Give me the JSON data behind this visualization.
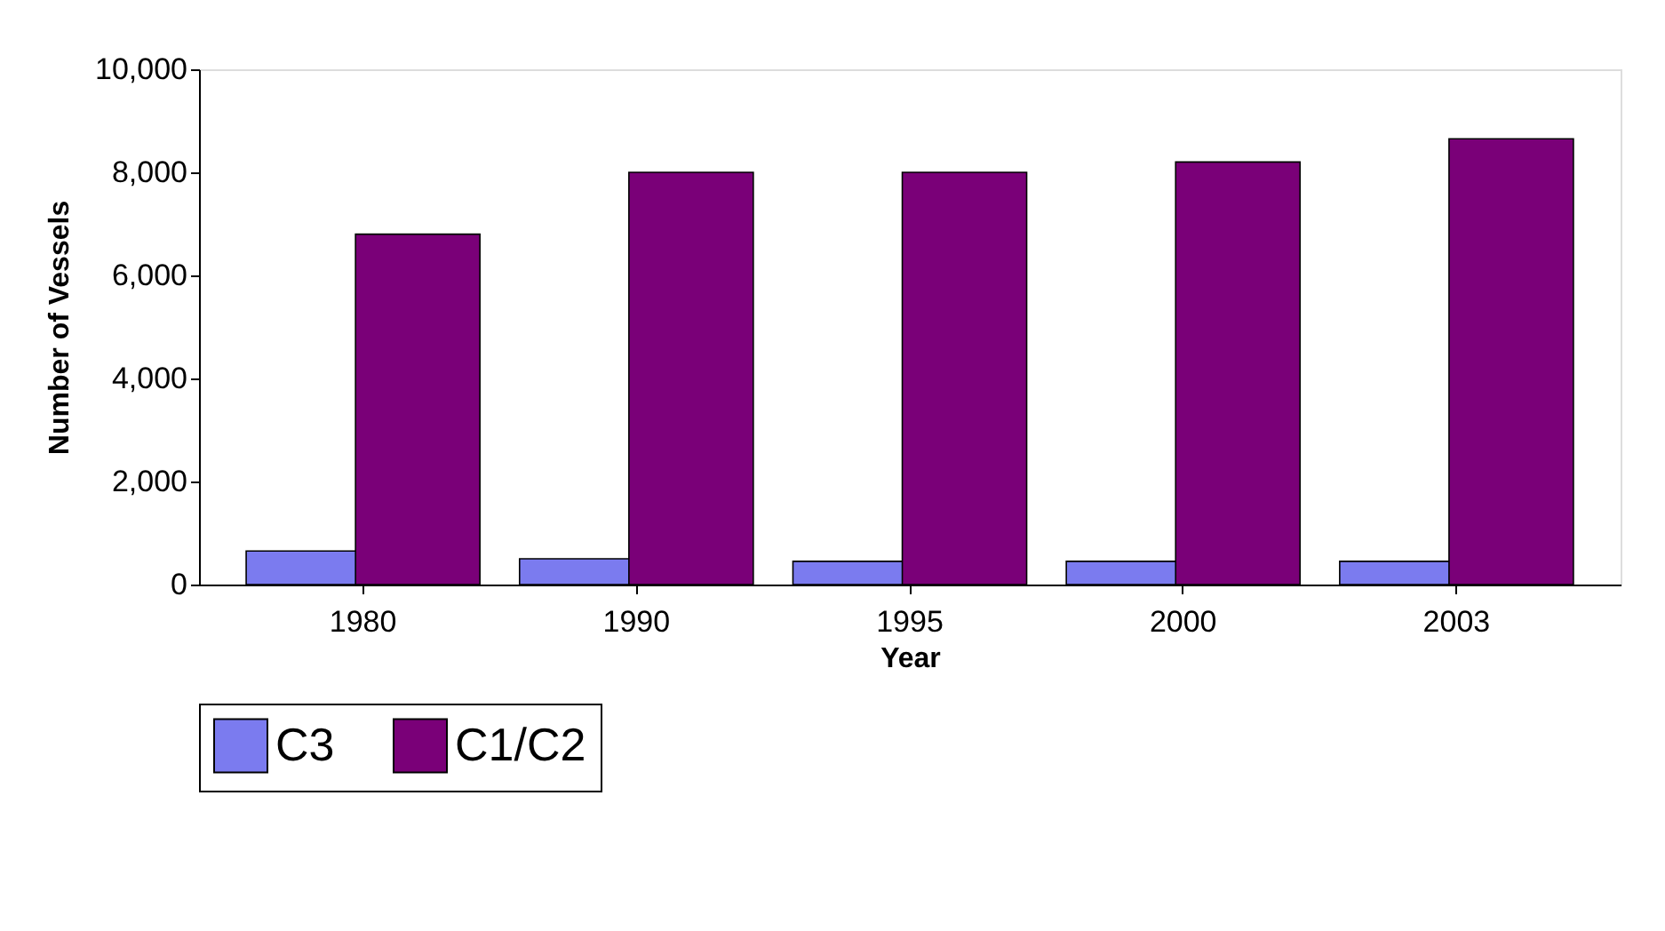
{
  "chart_data": {
    "type": "bar",
    "xlabel": "Year",
    "ylabel": "Number of Vessels",
    "categories": [
      "1980",
      "1990",
      "1995",
      "2000",
      "2003"
    ],
    "series": [
      {
        "name": "C3",
        "color": "#7b7bef",
        "values": [
          650,
          500,
          450,
          450,
          450
        ]
      },
      {
        "name": "C1/C2",
        "color": "#7a0078",
        "values": [
          6800,
          8000,
          8000,
          8200,
          8650
        ]
      }
    ],
    "ylim": [
      0,
      10000
    ],
    "yticks": [
      {
        "value": 0,
        "label": "0"
      },
      {
        "value": 2000,
        "label": "2,000"
      },
      {
        "value": 4000,
        "label": "4,000"
      },
      {
        "value": 6000,
        "label": "6,000"
      },
      {
        "value": 8000,
        "label": "8,000"
      },
      {
        "value": 10000,
        "label": "10,000"
      }
    ],
    "grid": false,
    "legend": "bottom"
  }
}
